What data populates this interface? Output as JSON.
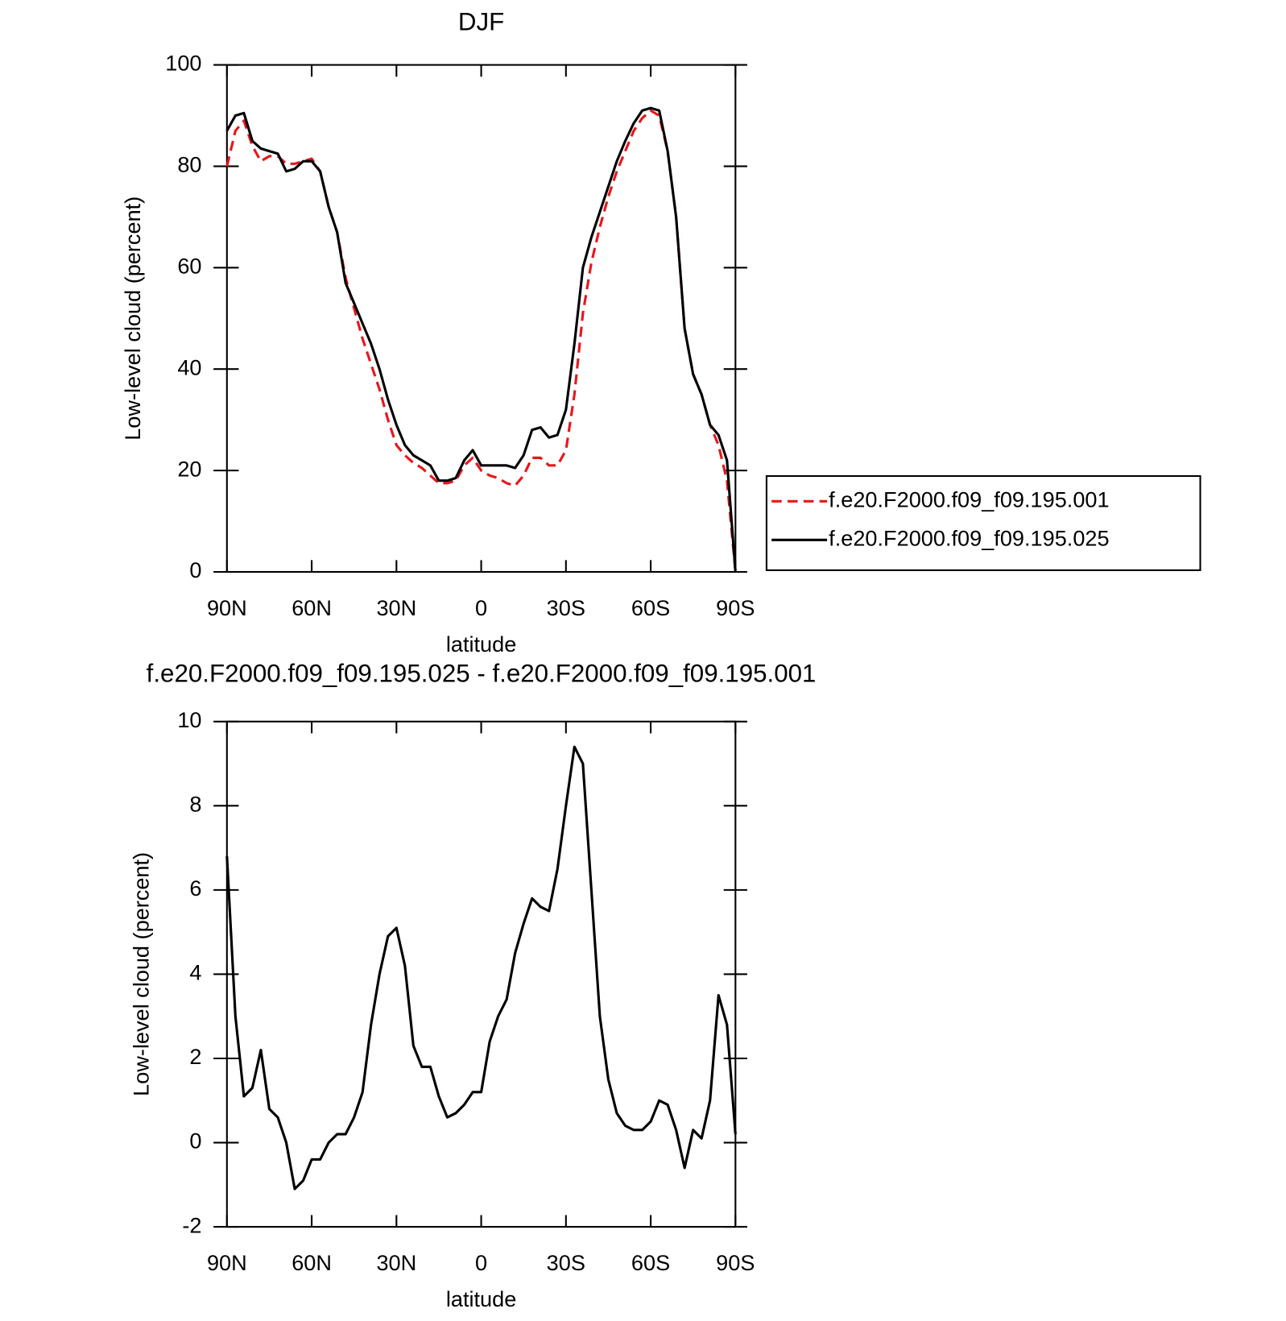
{
  "chart_data": [
    {
      "type": "line",
      "title": "DJF",
      "xlabel": "latitude",
      "ylabel": "Low-level cloud (percent)",
      "x": [
        90,
        87,
        84,
        81,
        78,
        75,
        72,
        69,
        66,
        63,
        60,
        57,
        54,
        51,
        48,
        45,
        42,
        39,
        36,
        33,
        30,
        27,
        24,
        21,
        18,
        15,
        12,
        9,
        6,
        3,
        0,
        -3,
        -6,
        -9,
        -12,
        -15,
        -18,
        -21,
        -24,
        -27,
        -30,
        -33,
        -36,
        -39,
        -42,
        -45,
        -48,
        -51,
        -54,
        -57,
        -60,
        -63,
        -66,
        -69,
        -72,
        -75,
        -78,
        -81,
        -84,
        -87,
        -90
      ],
      "series": [
        {
          "name": "f.e20.F2000.f09_f09.195.001",
          "color": "#e8161b",
          "linestyle": "dashed",
          "values": [
            80,
            87,
            89,
            84,
            81,
            82,
            82,
            80.5,
            80.5,
            81,
            81.5,
            79,
            72,
            67,
            58,
            52,
            46,
            41,
            36,
            30,
            25,
            23,
            21.5,
            20.5,
            19,
            17.5,
            17.5,
            18,
            21,
            22.5,
            20,
            19,
            18.5,
            17.5,
            17,
            19,
            22.5,
            22.5,
            21,
            21,
            24,
            35,
            51,
            61,
            68,
            74,
            79,
            83,
            87,
            89.5,
            91,
            90,
            83,
            70,
            48,
            39,
            35,
            29,
            25,
            18,
            0
          ]
        },
        {
          "name": "f.e20.F2000.f09_f09.195.025",
          "color": "#000000",
          "linestyle": "solid",
          "values": [
            87,
            90,
            90.5,
            85,
            83.5,
            83,
            82.5,
            79,
            79.5,
            81,
            81,
            79,
            72,
            67,
            57,
            53,
            49,
            45,
            40,
            34,
            29,
            25,
            23,
            22,
            21,
            18,
            18,
            18.5,
            22,
            24,
            21,
            21,
            21,
            21,
            20.5,
            23,
            28,
            28.5,
            26.5,
            27,
            32,
            45,
            60,
            66,
            71,
            76,
            81,
            85,
            88.5,
            91,
            91.5,
            91,
            83,
            70,
            48,
            39,
            35,
            29,
            27,
            22,
            0
          ]
        }
      ],
      "xlim": [
        90,
        -90
      ],
      "xticks": [
        {
          "value": 90,
          "label": "90N"
        },
        {
          "value": 60,
          "label": "60N"
        },
        {
          "value": 30,
          "label": "30N"
        },
        0,
        {
          "value": -30,
          "label": "30S"
        },
        {
          "value": -60,
          "label": "60S"
        },
        {
          "value": -90,
          "label": "90S"
        }
      ],
      "ylim": [
        0,
        100
      ],
      "yticks": [
        0,
        20,
        40,
        60,
        80,
        100
      ],
      "legend": "right"
    },
    {
      "type": "line",
      "title": "f.e20.F2000.f09_f09.195.025 - f.e20.F2000.f09_f09.195.001",
      "xlabel": "latitude",
      "ylabel": "Low-level cloud (percent)",
      "x": [
        90,
        87,
        84,
        81,
        78,
        75,
        72,
        69,
        66,
        63,
        60,
        57,
        54,
        51,
        48,
        45,
        42,
        39,
        36,
        33,
        30,
        27,
        24,
        21,
        18,
        15,
        12,
        9,
        6,
        3,
        0,
        -3,
        -6,
        -9,
        -12,
        -15,
        -18,
        -21,
        -24,
        -27,
        -30,
        -33,
        -36,
        -39,
        -42,
        -45,
        -48,
        -51,
        -54,
        -57,
        -60,
        -63,
        -66,
        -69,
        -72,
        -75,
        -78,
        -81,
        -84,
        -87,
        -90
      ],
      "values": [
        6.8,
        3.0,
        1.1,
        1.3,
        2.2,
        0.8,
        0.6,
        0.0,
        -1.1,
        -0.9,
        -0.4,
        -0.4,
        0.0,
        0.2,
        0.2,
        0.6,
        1.2,
        2.8,
        4.0,
        4.9,
        5.1,
        4.2,
        2.3,
        1.8,
        1.8,
        1.1,
        0.6,
        0.7,
        0.9,
        1.2,
        1.2,
        2.4,
        3.0,
        3.4,
        4.5,
        5.2,
        5.8,
        5.6,
        5.5,
        6.5,
        8.0,
        9.4,
        9.0,
        6.0,
        3.0,
        1.5,
        0.7,
        0.4,
        0.3,
        0.3,
        0.5,
        1.0,
        0.9,
        0.3,
        -0.6,
        0.3,
        0.1,
        1.0,
        3.5,
        2.8,
        0.2
      ],
      "color": "#000000",
      "xlim": [
        90,
        -90
      ],
      "xticks": [
        {
          "value": 90,
          "label": "90N"
        },
        {
          "value": 60,
          "label": "60N"
        },
        {
          "value": 30,
          "label": "30N"
        },
        0,
        {
          "value": -30,
          "label": "30S"
        },
        {
          "value": -60,
          "label": "60S"
        },
        {
          "value": -90,
          "label": "90S"
        }
      ],
      "ylim": [
        -2,
        10
      ],
      "yticks": [
        -2,
        0,
        2,
        4,
        6,
        8,
        10
      ]
    }
  ]
}
